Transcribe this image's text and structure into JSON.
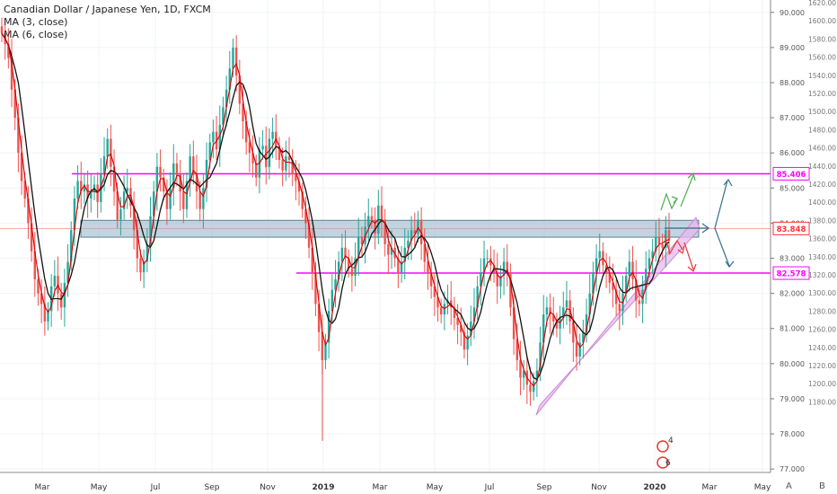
{
  "legend": {
    "title": "Canadian Dollar / Japanese Yen, 1D, FXCM",
    "ma1": "MA (3, close)",
    "ma2": "MA (6, close)"
  },
  "corner_buttons": {
    "log": "A",
    "other": "B"
  },
  "markers": {
    "a": "4",
    "b": "6"
  },
  "chart_data": {
    "type": "candlestick",
    "title": "Canadian Dollar / Japanese Yen, 1D, FXCM",
    "x_tick_labels": [
      "Mar",
      "May",
      "Jul",
      "Sep",
      "Nov",
      "2019",
      "Mar",
      "May",
      "Jul",
      "Sep",
      "Nov",
      "2020",
      "Mar",
      "May"
    ],
    "y_ticks_left": [
      "90.000",
      "89.000",
      "88.000",
      "87.000",
      "86.000",
      "85.000",
      "84.000",
      "83.000",
      "82.000",
      "81.000",
      "80.000",
      "79.000",
      "78.000",
      "77.000"
    ],
    "y_ticks_right": [
      "1620.00",
      "1600.00",
      "1580.00",
      "1560.00",
      "1540.00",
      "1520.00",
      "1500.00",
      "1480.00",
      "1460.00",
      "1440.00",
      "1420.00",
      "1400.00",
      "1380.00",
      "1360.00",
      "1340.00",
      "1320.00",
      "1300.00",
      "1280.00",
      "1260.00",
      "1240.00",
      "1220.00",
      "1200.00",
      "1180.00"
    ],
    "ylim": [
      76.8,
      90.25
    ],
    "price_labels": [
      {
        "value": 85.406,
        "text": "85.406",
        "color": "#ff00ff"
      },
      {
        "value": 83.848,
        "text": "83.848",
        "color": "#ff3333"
      },
      {
        "value": 82.578,
        "text": "82.578",
        "color": "#ff00ff"
      }
    ],
    "horizontal_lines": [
      {
        "value": 85.406,
        "color": "#ff00ff"
      },
      {
        "value": 82.578,
        "color": "#ff00ff"
      }
    ],
    "resistance_zone": {
      "y_low": 83.6,
      "y_high": 84.08
    },
    "colors": {
      "up": "#26a69a",
      "down": "#ef5350",
      "ma_fast": "#d50000",
      "ma_slow": "#111111",
      "magenta": "#ff00ff",
      "channel": "#e7b8ee",
      "zone": "#9ab8c9"
    },
    "series_close": [
      89.4,
      89.1,
      88.7,
      87.8,
      87.0,
      86.0,
      85.2,
      84.7,
      84.0,
      83.2,
      82.4,
      82.0,
      81.7,
      81.2,
      81.5,
      82.2,
      82.5,
      82.0,
      81.6,
      82.3,
      82.9,
      83.8,
      84.7,
      85.2,
      84.9,
      85.1,
      84.7,
      84.9,
      85.1,
      84.6,
      85.4,
      85.9,
      86.4,
      85.6,
      84.9,
      84.1,
      84.4,
      84.9,
      85.0,
      84.5,
      83.8,
      83.0,
      82.6,
      82.9,
      83.4,
      84.2,
      84.9,
      85.6,
      85.3,
      84.9,
      84.4,
      85.0,
      85.7,
      85.4,
      84.9,
      84.4,
      85.2,
      85.9,
      85.4,
      84.9,
      84.4,
      85.0,
      85.8,
      86.3,
      86.6,
      86.1,
      86.8,
      87.3,
      87.8,
      88.4,
      89.0,
      88.2,
      87.4,
      86.9,
      86.3,
      86.0,
      85.7,
      85.3,
      86.1,
      86.2,
      85.6,
      86.4,
      86.6,
      86.2,
      85.8,
      85.5,
      85.9,
      85.8,
      85.4,
      85.2,
      84.9,
      84.4,
      84.0,
      83.3,
      82.6,
      81.7,
      80.9,
      80.1,
      80.6,
      81.5,
      82.1,
      82.4,
      82.9,
      83.3,
      83.0,
      82.7,
      82.5,
      83.0,
      83.6,
      83.4,
      83.9,
      84.2,
      84.1,
      83.7,
      84.5,
      84.1,
      83.4,
      83.1,
      83.3,
      83.0,
      82.6,
      82.9,
      83.3,
      83.5,
      83.8,
      83.7,
      84.1,
      83.4,
      82.9,
      82.6,
      82.2,
      81.9,
      81.6,
      81.4,
      81.7,
      81.8,
      81.6,
      81.3,
      81.1,
      80.9,
      80.4,
      80.8,
      81.2,
      81.6,
      82.2,
      82.6,
      83.0,
      83.0,
      82.8,
      82.6,
      82.2,
      82.5,
      82.9,
      82.6,
      81.6,
      80.7,
      80.1,
      79.6,
      79.8,
      79.4,
      79.2,
      79.5,
      79.8,
      80.6,
      81.4,
      81.6,
      81.4,
      81.2,
      81.0,
      81.3,
      81.6,
      81.8,
      81.2,
      80.6,
      80.2,
      80.6,
      80.9,
      81.4,
      82.0,
      82.6,
      83.0,
      83.2,
      82.8,
      82.6,
      82.3,
      82.1,
      81.7,
      81.5,
      82.0,
      82.5,
      82.9,
      82.4,
      81.8,
      81.7,
      82.1,
      82.7,
      83.0,
      83.2,
      83.6,
      83.4,
      83.3,
      83.8,
      83.5
    ]
  }
}
